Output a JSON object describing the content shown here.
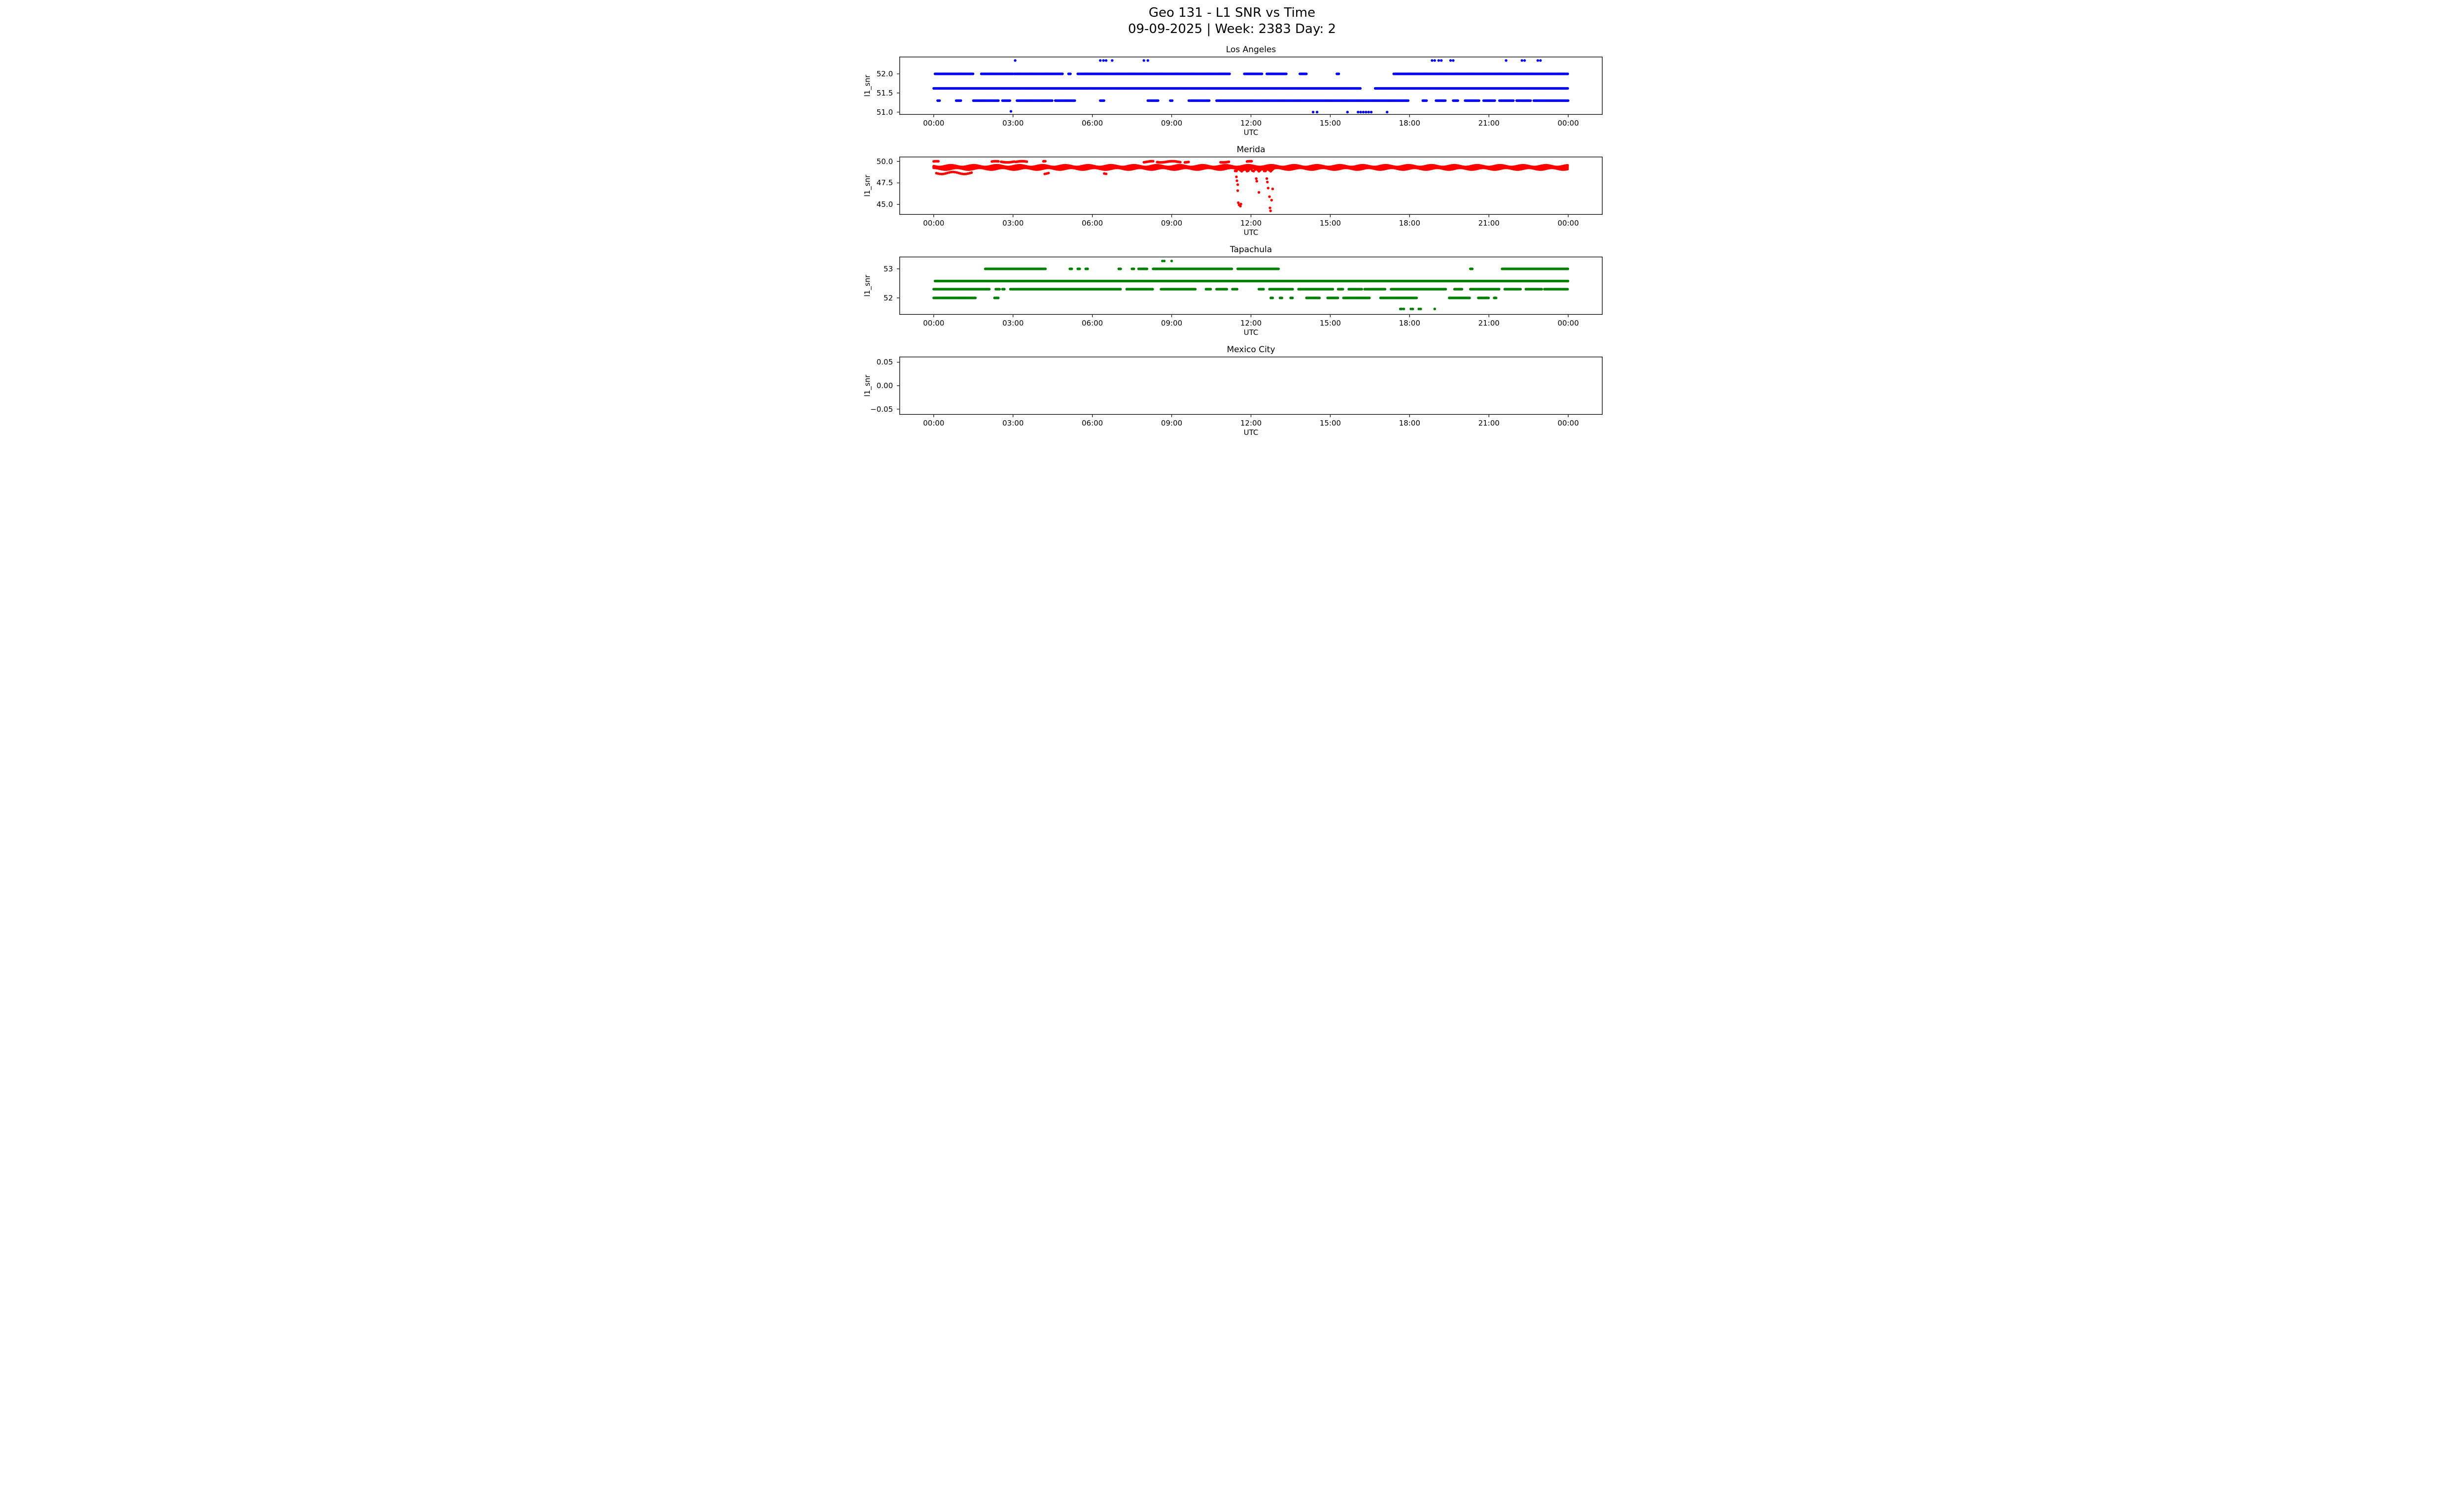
{
  "figure": {
    "title": "Geo 131 - L1 SNR vs Time",
    "subtitle": "09-09-2025 | Week: 2383 Day: 2"
  },
  "chart_data": {
    "type": "scatter",
    "title": "Geo 131 - L1 SNR vs Time",
    "subtitle": "09-09-2025 | Week: 2383 Day: 2",
    "x_axis": {
      "label": "UTC",
      "unit": "hours",
      "xlim": [
        -1.3,
        25.3
      ],
      "ticks": [
        0,
        3,
        6,
        9,
        12,
        15,
        18,
        21,
        24
      ],
      "tick_labels": [
        "00:00",
        "03:00",
        "06:00",
        "09:00",
        "12:00",
        "15:00",
        "18:00",
        "21:00",
        "00:00"
      ]
    },
    "subplots": [
      {
        "title": "Los Angeles",
        "slug": "los-angeles",
        "ylabel": "l1_snr",
        "xlabel": "UTC",
        "color": "#0000ff",
        "ylim": [
          50.93,
          52.45
        ],
        "yticks": {
          "values": [
            51.0,
            51.5,
            52.0
          ],
          "labels": [
            "51.0",
            "51.5",
            "52.0"
          ]
        },
        "levels": [
          {
            "y": 52.0,
            "segments": [
              [
                0.05,
                1.5
              ],
              [
                1.8,
                3.0
              ],
              [
                3.05,
                4.9
              ],
              [
                5.1,
                5.2
              ],
              [
                5.45,
                11.2
              ],
              [
                11.75,
                12.45
              ],
              [
                12.6,
                13.35
              ],
              [
                13.85,
                14.1
              ],
              [
                15.25,
                15.35
              ],
              [
                17.4,
                24.0
              ]
            ]
          },
          {
            "y": 51.62,
            "segments": [
              [
                0.0,
                16.15
              ],
              [
                16.7,
                24.0
              ]
            ]
          },
          {
            "y": 51.3,
            "segments": [
              [
                0.15,
                0.25
              ],
              [
                0.85,
                1.05
              ],
              [
                1.5,
                2.45
              ],
              [
                2.6,
                2.9
              ],
              [
                3.15,
                4.5
              ],
              [
                4.6,
                5.35
              ],
              [
                6.3,
                6.45
              ],
              [
                8.1,
                8.5
              ],
              [
                8.95,
                9.05
              ],
              [
                9.65,
                10.45
              ],
              [
                10.7,
                17.95
              ],
              [
                18.5,
                18.65
              ],
              [
                19.0,
                19.35
              ],
              [
                19.65,
                19.85
              ],
              [
                20.1,
                20.65
              ],
              [
                20.8,
                21.25
              ],
              [
                21.4,
                21.95
              ],
              [
                22.05,
                22.6
              ],
              [
                22.7,
                24.0
              ]
            ]
          }
        ],
        "dots": [
          [
            3.08,
            52.35
          ],
          [
            6.3,
            52.35
          ],
          [
            6.42,
            52.35
          ],
          [
            6.52,
            52.35
          ],
          [
            6.75,
            52.35
          ],
          [
            7.95,
            52.35
          ],
          [
            8.1,
            52.35
          ],
          [
            18.85,
            52.35
          ],
          [
            18.95,
            52.35
          ],
          [
            19.1,
            52.35
          ],
          [
            19.2,
            52.35
          ],
          [
            19.55,
            52.35
          ],
          [
            19.65,
            52.35
          ],
          [
            21.65,
            52.35
          ],
          [
            22.25,
            52.35
          ],
          [
            22.35,
            52.35
          ],
          [
            22.85,
            52.35
          ],
          [
            22.95,
            52.35
          ],
          [
            2.92,
            51.02
          ],
          [
            14.35,
            51.0
          ],
          [
            14.5,
            51.0
          ],
          [
            15.65,
            51.0
          ],
          [
            16.05,
            51.0
          ],
          [
            16.15,
            51.0
          ],
          [
            16.25,
            51.0
          ],
          [
            16.35,
            51.0
          ],
          [
            16.45,
            51.0
          ],
          [
            16.55,
            51.0
          ],
          [
            17.15,
            51.0
          ]
        ]
      },
      {
        "title": "Merida",
        "slug": "merida",
        "ylabel": "l1_snr",
        "xlabel": "UTC",
        "color": "#ff0000",
        "ylim": [
          43.8,
          50.55
        ],
        "yticks": {
          "values": [
            45.0,
            47.5,
            50.0
          ],
          "labels": [
            "45.0",
            "47.5",
            "50.0"
          ]
        },
        "levels": [
          {
            "y": 49.45,
            "jitter": 0.1,
            "segments": [
              [
                0.0,
                24.0
              ]
            ]
          },
          {
            "y": 49.3,
            "jitter": 0.12,
            "segments": [
              [
                0.0,
                24.0
              ]
            ]
          },
          {
            "y": 49.15,
            "jitter": 0.1,
            "segments": [
              [
                0.0,
                24.0
              ]
            ]
          },
          {
            "y": 49.95,
            "jitter": 0.07,
            "segments": [
              [
                0.0,
                0.2
              ],
              [
                2.2,
                2.45
              ],
              [
                2.55,
                3.05
              ],
              [
                3.1,
                3.55
              ],
              [
                4.15,
                4.25
              ],
              [
                7.95,
                8.3
              ],
              [
                8.45,
                9.35
              ],
              [
                9.5,
                9.65
              ],
              [
                10.85,
                11.2
              ],
              [
                11.85,
                12.05
              ]
            ]
          },
          {
            "y": 48.65,
            "jitter": 0.12,
            "step": 0.07,
            "segments": [
              [
                0.1,
                1.5
              ],
              [
                4.2,
                4.35
              ],
              [
                6.45,
                6.55
              ]
            ]
          },
          {
            "y": 49.0,
            "jitter": 0.15,
            "step": 0.05,
            "segments": [
              [
                11.4,
                12.9
              ]
            ]
          }
        ],
        "dots": [
          [
            11.45,
            48.2
          ],
          [
            11.47,
            47.75
          ],
          [
            11.5,
            47.3
          ],
          [
            11.5,
            46.6
          ],
          [
            11.52,
            45.2
          ],
          [
            11.55,
            44.95
          ],
          [
            11.6,
            44.8
          ],
          [
            11.62,
            45.05
          ],
          [
            12.2,
            48.0
          ],
          [
            12.22,
            47.7
          ],
          [
            12.3,
            46.4
          ],
          [
            12.6,
            48.0
          ],
          [
            12.62,
            47.6
          ],
          [
            12.65,
            46.9
          ],
          [
            12.7,
            45.9
          ],
          [
            12.72,
            44.6
          ],
          [
            12.74,
            44.25
          ],
          [
            12.78,
            45.5
          ],
          [
            12.82,
            46.8
          ]
        ]
      },
      {
        "title": "Tapachula",
        "slug": "tapachula",
        "ylabel": "l1_snr",
        "xlabel": "UTC",
        "color": "#008000",
        "ylim": [
          51.42,
          53.42
        ],
        "yticks": {
          "values": [
            52.0,
            53.0
          ],
          "labels": [
            "52",
            "53"
          ]
        },
        "levels": [
          {
            "y": 53.0,
            "segments": [
              [
                1.95,
                4.25
              ],
              [
                5.15,
                5.25
              ],
              [
                5.45,
                5.55
              ],
              [
                5.75,
                5.85
              ],
              [
                7.0,
                7.1
              ],
              [
                7.5,
                7.6
              ],
              [
                7.75,
                8.1
              ],
              [
                8.3,
                11.3
              ],
              [
                11.5,
                13.05
              ],
              [
                20.3,
                20.4
              ],
              [
                21.5,
                24.0
              ]
            ]
          },
          {
            "y": 52.58,
            "segments": [
              [
                0.05,
                24.0
              ]
            ]
          },
          {
            "y": 52.3,
            "segments": [
              [
                0.0,
                2.1
              ],
              [
                2.35,
                2.5
              ],
              [
                2.6,
                2.7
              ],
              [
                2.9,
                7.1
              ],
              [
                7.3,
                8.3
              ],
              [
                8.6,
                9.9
              ],
              [
                10.3,
                10.5
              ],
              [
                10.7,
                11.1
              ],
              [
                11.3,
                11.5
              ],
              [
                12.3,
                12.5
              ],
              [
                12.7,
                13.6
              ],
              [
                13.8,
                15.1
              ],
              [
                15.3,
                15.5
              ],
              [
                15.7,
                16.2
              ],
              [
                16.3,
                17.1
              ],
              [
                17.3,
                19.4
              ],
              [
                19.7,
                20.0
              ],
              [
                20.3,
                21.4
              ],
              [
                21.6,
                22.2
              ],
              [
                22.4,
                23.0
              ],
              [
                23.1,
                24.0
              ]
            ]
          },
          {
            "y": 52.0,
            "segments": [
              [
                0.0,
                1.6
              ],
              [
                2.3,
                2.45
              ],
              [
                12.75,
                12.85
              ],
              [
                13.1,
                13.2
              ],
              [
                13.5,
                13.6
              ],
              [
                14.1,
                14.6
              ],
              [
                14.9,
                15.3
              ],
              [
                15.5,
                16.5
              ],
              [
                16.9,
                18.3
              ],
              [
                19.5,
                20.3
              ],
              [
                20.6,
                21.0
              ],
              [
                21.2,
                21.3
              ]
            ]
          }
        ],
        "dots": [
          [
            8.65,
            53.27
          ],
          [
            8.72,
            53.27
          ],
          [
            9.0,
            53.27
          ],
          [
            17.65,
            51.62
          ],
          [
            17.7,
            51.62
          ],
          [
            17.78,
            51.62
          ],
          [
            18.05,
            51.62
          ],
          [
            18.12,
            51.62
          ],
          [
            18.35,
            51.62
          ],
          [
            18.42,
            51.62
          ],
          [
            18.95,
            51.62
          ]
        ]
      },
      {
        "title": "Mexico City",
        "slug": "mexico-city",
        "ylabel": "l1_snr",
        "xlabel": "UTC",
        "color": "#000000",
        "ylim": [
          -0.062,
          0.062
        ],
        "yticks": {
          "values": [
            -0.05,
            0.0,
            0.05
          ],
          "labels": [
            "−0.05",
            "0.00",
            "0.05"
          ]
        },
        "levels": [],
        "dots": []
      }
    ]
  }
}
